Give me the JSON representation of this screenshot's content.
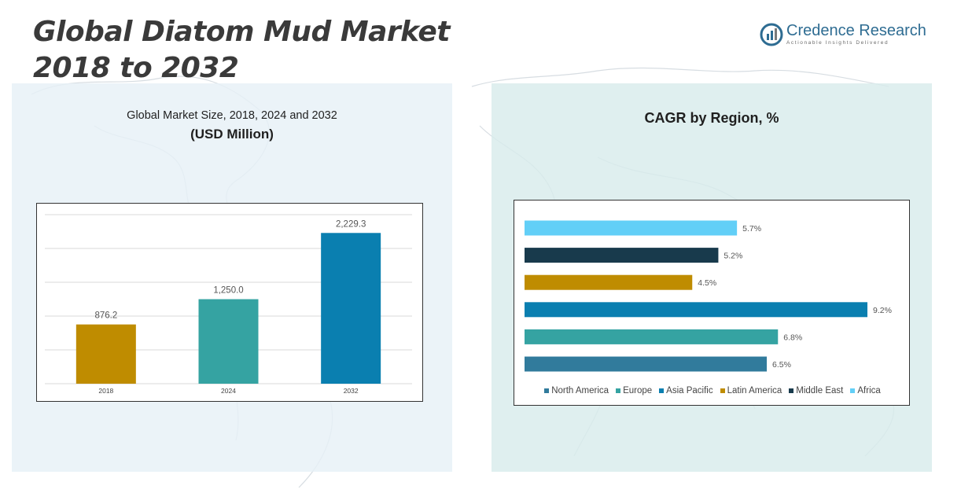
{
  "header": {
    "title_line1": "Global Diatom Mud Market",
    "title_line2": "2018 to 2032"
  },
  "logo": {
    "name": "Credence Research",
    "tagline": "Actionable Insights Delivered",
    "icon": "credence-logo-icon"
  },
  "left_panel": {
    "subtitle": "Global Market Size, 2018, 2024 and 2032",
    "unit": "(USD Million)"
  },
  "right_panel": {
    "title": "CAGR by Region, %"
  },
  "chart_data": [
    {
      "type": "bar",
      "orientation": "vertical",
      "title": "Global Market Size, 2018, 2024 and 2032",
      "ylabel": "(USD Million)",
      "categories": [
        "2018",
        "2024",
        "2032"
      ],
      "values": [
        876.2,
        1250.0,
        2229.3
      ],
      "value_labels": [
        "876.2",
        "1,250.0",
        "2,229.3"
      ],
      "colors": [
        "#bf8c00",
        "#35a3a2",
        "#0a7fb0"
      ],
      "ylim": [
        0,
        2500
      ],
      "grid": true,
      "legend": "none"
    },
    {
      "type": "bar",
      "orientation": "horizontal",
      "title": "CAGR by Region, %",
      "categories": [
        "North America",
        "Europe",
        "Asia Pacific",
        "Latin America",
        "Middle East",
        "Africa"
      ],
      "values": [
        6.5,
        6.8,
        9.2,
        4.5,
        5.2,
        5.7
      ],
      "value_labels": [
        "6.5%",
        "6.8%",
        "9.2%",
        "4.5%",
        "5.2%",
        "5.7%"
      ],
      "colors": [
        "#317b9c",
        "#35a3a2",
        "#0a7fb0",
        "#bf8c00",
        "#183a4c",
        "#62cff7"
      ],
      "xlim": [
        0,
        9.2
      ],
      "grid": false,
      "legend": "bottom"
    }
  ]
}
